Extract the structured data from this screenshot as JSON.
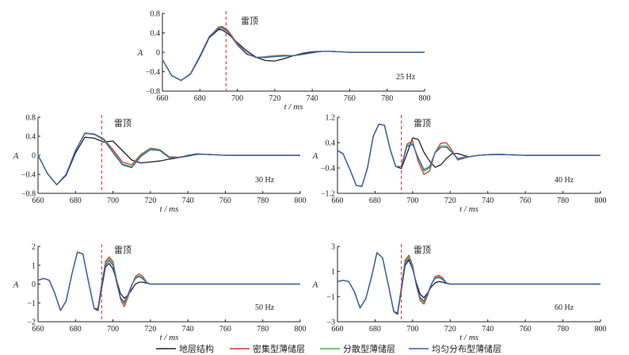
{
  "chart_data": [
    {
      "type": "line",
      "frequency_label": "25 Hz",
      "annotation": "雷顶",
      "marker_x": 694,
      "xlabel": "t / ms",
      "ylabel": "A",
      "xlim": [
        660,
        800
      ],
      "ylim": [
        -0.8,
        0.8
      ],
      "xticks": [
        660,
        680,
        700,
        720,
        740,
        760,
        780,
        800
      ],
      "yticks": [
        -0.8,
        -0.4,
        0,
        0.4,
        0.8
      ],
      "ytick_labels": [
        "−0.8",
        "−0.4",
        "0",
        "0.4",
        "0.8"
      ],
      "x": [
        660,
        665,
        670,
        675,
        680,
        685,
        690,
        692,
        695,
        700,
        705,
        710,
        715,
        720,
        725,
        730,
        735,
        740,
        745,
        750,
        755,
        760,
        770,
        780,
        790,
        800
      ],
      "series": [
        {
          "name": "地层结构",
          "values": [
            -0.15,
            -0.48,
            -0.58,
            -0.45,
            -0.1,
            0.3,
            0.47,
            0.46,
            0.38,
            0.2,
            0.03,
            -0.1,
            -0.17,
            -0.18,
            -0.13,
            -0.07,
            -0.02,
            0.01,
            0.02,
            0.02,
            0.01,
            0,
            0,
            0,
            0,
            0
          ]
        },
        {
          "name": "密集型薄储层",
          "values": [
            -0.15,
            -0.48,
            -0.58,
            -0.44,
            -0.08,
            0.32,
            0.52,
            0.53,
            0.45,
            0.18,
            -0.02,
            -0.11,
            -0.09,
            -0.07,
            -0.06,
            -0.07,
            -0.04,
            -0.01,
            0.02,
            0.02,
            0.01,
            0,
            0,
            0,
            0,
            0
          ]
        },
        {
          "name": "分散型薄储层",
          "values": [
            -0.15,
            -0.48,
            -0.58,
            -0.44,
            -0.08,
            0.32,
            0.5,
            0.51,
            0.43,
            0.16,
            -0.03,
            -0.1,
            -0.1,
            -0.08,
            -0.07,
            -0.07,
            -0.04,
            -0.01,
            0.02,
            0.02,
            0.01,
            0,
            0,
            0,
            0,
            0
          ]
        },
        {
          "name": "均匀分布型薄储层",
          "values": [
            -0.15,
            -0.48,
            -0.58,
            -0.44,
            -0.08,
            0.32,
            0.49,
            0.5,
            0.42,
            0.15,
            -0.04,
            -0.1,
            -0.11,
            -0.09,
            -0.08,
            -0.07,
            -0.04,
            -0.01,
            0.02,
            0.02,
            0.01,
            0,
            0,
            0,
            0,
            0
          ]
        }
      ]
    },
    {
      "type": "line",
      "frequency_label": "30 Hz",
      "annotation": "雷顶",
      "marker_x": 694,
      "xlabel": "t / ms",
      "ylabel": "A",
      "xlim": [
        660,
        800
      ],
      "ylim": [
        -0.8,
        0.8
      ],
      "xticks": [
        660,
        680,
        700,
        720,
        740,
        760,
        780,
        800
      ],
      "yticks": [
        -0.8,
        -0.4,
        0,
        0.4,
        0.8
      ],
      "ytick_labels": [
        "−0.8",
        "−0.4",
        "0",
        "0.4",
        "0.8"
      ],
      "x": [
        660,
        665,
        670,
        675,
        680,
        685,
        690,
        695,
        700,
        705,
        710,
        715,
        720,
        725,
        730,
        735,
        740,
        745,
        750,
        755,
        760,
        770,
        780,
        790,
        800
      ],
      "series": [
        {
          "name": "地层结构",
          "values": [
            0,
            -0.38,
            -0.62,
            -0.42,
            0.05,
            0.38,
            0.36,
            0.28,
            0.3,
            0.1,
            -0.1,
            -0.16,
            -0.14,
            -0.12,
            -0.08,
            -0.05,
            0,
            0.03,
            0.02,
            0.01,
            0,
            0,
            0,
            0,
            0
          ]
        },
        {
          "name": "密集型薄储层",
          "values": [
            0,
            -0.38,
            -0.62,
            -0.4,
            0.1,
            0.47,
            0.45,
            0.35,
            0.12,
            -0.14,
            -0.2,
            0.02,
            0.15,
            0.12,
            -0.03,
            -0.04,
            -0.01,
            0.02,
            0.02,
            0.01,
            0,
            0,
            0,
            0,
            0
          ]
        },
        {
          "name": "分散型薄储层",
          "values": [
            0,
            -0.38,
            -0.62,
            -0.4,
            0.1,
            0.46,
            0.45,
            0.35,
            0.08,
            -0.18,
            -0.24,
            0,
            0.14,
            0.11,
            -0.04,
            -0.05,
            -0.01,
            0.02,
            0.02,
            0.01,
            0,
            0,
            0,
            0,
            0
          ]
        },
        {
          "name": "均匀分布型薄储层",
          "values": [
            0,
            -0.38,
            -0.62,
            -0.4,
            0.1,
            0.46,
            0.44,
            0.33,
            0.06,
            -0.2,
            -0.26,
            -0.02,
            0.12,
            0.1,
            -0.05,
            -0.05,
            -0.02,
            0.02,
            0.02,
            0.01,
            0,
            0,
            0,
            0,
            0
          ]
        }
      ]
    },
    {
      "type": "line",
      "frequency_label": "40 Hz",
      "annotation": "雷顶",
      "marker_x": 694,
      "xlabel": "t / ms",
      "ylabel": "A",
      "xlim": [
        660,
        800
      ],
      "ylim": [
        -1.2,
        1.2
      ],
      "xticks": [
        660,
        680,
        700,
        720,
        740,
        760,
        780,
        800
      ],
      "yticks": [
        -1.2,
        -0.4,
        0.4,
        1.2
      ],
      "ytick_labels": [
        "−1.2",
        "−0.4",
        "0.4",
        "1.2"
      ],
      "x": [
        660,
        663,
        667,
        670,
        673,
        676,
        679,
        682,
        685,
        688,
        691,
        694,
        697,
        700,
        703,
        706,
        709,
        712,
        715,
        718,
        721,
        724,
        727,
        730,
        735,
        740,
        745,
        750,
        760,
        770,
        780,
        790,
        800
      ],
      "series": [
        {
          "name": "地层结构",
          "values": [
            0.15,
            0.05,
            -0.5,
            -0.95,
            -0.98,
            -0.4,
            0.6,
            0.98,
            0.95,
            0.2,
            -0.35,
            -0.42,
            0.05,
            0.55,
            0.5,
            0.1,
            -0.18,
            -0.38,
            -0.3,
            -0.1,
            0.05,
            0.06,
            0,
            -0.05,
            0,
            0.02,
            0.03,
            0.02,
            0,
            0,
            0,
            0,
            0
          ]
        },
        {
          "name": "密集型薄储层",
          "values": [
            0.15,
            0.05,
            -0.5,
            -0.95,
            -0.98,
            -0.4,
            0.6,
            0.98,
            0.95,
            0.2,
            -0.35,
            -0.36,
            0.35,
            0.45,
            -0.2,
            -0.6,
            -0.5,
            0.1,
            0.38,
            0.4,
            0.15,
            -0.15,
            -0.1,
            -0.05,
            0,
            0.02,
            0.03,
            0.02,
            0,
            0,
            0,
            0,
            0
          ]
        },
        {
          "name": "分散型薄储层",
          "values": [
            0.15,
            0.05,
            -0.5,
            -0.95,
            -0.98,
            -0.4,
            0.6,
            0.98,
            0.95,
            0.2,
            -0.35,
            -0.36,
            0.3,
            0.38,
            -0.1,
            -0.5,
            -0.4,
            0.1,
            0.3,
            0.3,
            0.1,
            -0.12,
            -0.08,
            -0.05,
            0,
            0.02,
            0.03,
            0.02,
            0,
            0,
            0,
            0,
            0
          ]
        },
        {
          "name": "均匀分布型薄储层",
          "values": [
            0.15,
            0.05,
            -0.5,
            -0.95,
            -0.98,
            -0.4,
            0.6,
            0.98,
            0.95,
            0.2,
            -0.35,
            -0.36,
            0.28,
            0.34,
            -0.08,
            -0.45,
            -0.36,
            0.08,
            0.25,
            0.26,
            0.08,
            -0.1,
            -0.06,
            -0.04,
            0,
            0.02,
            0.03,
            0.02,
            0,
            0,
            0,
            0,
            0
          ]
        }
      ]
    },
    {
      "type": "line",
      "frequency_label": "50 Hz",
      "annotation": "雷顶",
      "marker_x": 694,
      "xlabel": "t / ms",
      "ylabel": "A",
      "xlim": [
        660,
        800
      ],
      "ylim": [
        -2,
        2
      ],
      "xticks": [
        660,
        680,
        700,
        720,
        740,
        760,
        780,
        800
      ],
      "yticks": [
        -2,
        -1,
        0,
        1,
        2
      ],
      "ytick_labels": [
        "−2",
        "−1",
        "0",
        "1",
        "2"
      ],
      "x": [
        660,
        663,
        666,
        669,
        672,
        675,
        678,
        681,
        684,
        687,
        690,
        692,
        694,
        696,
        698,
        700,
        702,
        704,
        706,
        708,
        710,
        712,
        714,
        716,
        718,
        720,
        724,
        728,
        732,
        740,
        750,
        760,
        770,
        780,
        790,
        800
      ],
      "series": [
        {
          "name": "地层结构",
          "values": [
            0.2,
            0.3,
            0.2,
            -0.5,
            -1.4,
            -0.9,
            0.5,
            1.7,
            1.6,
            0.1,
            -1.3,
            -1.4,
            -0.2,
            0.9,
            1.1,
            0.8,
            0.2,
            -0.5,
            -0.75,
            -0.6,
            -0.3,
            0,
            0.1,
            0.1,
            0.05,
            0,
            0,
            0,
            0,
            0,
            0,
            0,
            0,
            0,
            0,
            0
          ]
        },
        {
          "name": "密集型薄储层",
          "values": [
            0.2,
            0.3,
            0.2,
            -0.5,
            -1.4,
            -0.9,
            0.5,
            1.7,
            1.6,
            0.1,
            -1.3,
            -1.3,
            0,
            1.2,
            1.45,
            1.2,
            0.2,
            -0.8,
            -1.2,
            -0.7,
            -0.1,
            0.4,
            0.55,
            0.4,
            0.1,
            0,
            0,
            0,
            0,
            0,
            0,
            0,
            0,
            0,
            0,
            0
          ]
        },
        {
          "name": "分散型薄储层",
          "values": [
            0.2,
            0.3,
            0.2,
            -0.5,
            -1.4,
            -0.9,
            0.5,
            1.7,
            1.6,
            0.1,
            -1.3,
            -1.3,
            0,
            1.1,
            1.35,
            1.1,
            0.1,
            -0.75,
            -1.05,
            -0.6,
            -0.05,
            0.35,
            0.45,
            0.32,
            0.08,
            0,
            0,
            0,
            0,
            0,
            0,
            0,
            0,
            0,
            0,
            0
          ]
        },
        {
          "name": "均匀分布型薄储层",
          "values": [
            0.2,
            0.3,
            0.2,
            -0.5,
            -1.4,
            -0.9,
            0.5,
            1.7,
            1.6,
            0.1,
            -1.3,
            -1.3,
            0,
            1.0,
            1.25,
            1.0,
            0.05,
            -0.7,
            -0.95,
            -0.55,
            -0.05,
            0.3,
            0.4,
            0.28,
            0.06,
            0,
            0,
            0,
            0,
            0,
            0,
            0,
            0,
            0,
            0,
            0
          ]
        }
      ]
    },
    {
      "type": "line",
      "frequency_label": "60 Hz",
      "annotation": "雷顶",
      "marker_x": 694,
      "xlabel": "t / ms",
      "ylabel": "A",
      "xlim": [
        660,
        800
      ],
      "ylim": [
        -3,
        3
      ],
      "xticks": [
        660,
        680,
        700,
        720,
        740,
        760,
        780,
        800
      ],
      "yticks": [
        -3,
        -1,
        1,
        3
      ],
      "ytick_labels": [
        "−3",
        "−1",
        "1",
        "3"
      ],
      "x": [
        660,
        663,
        666,
        669,
        672,
        675,
        678,
        681,
        684,
        687,
        690,
        692,
        694,
        696,
        698,
        700,
        702,
        704,
        706,
        708,
        710,
        712,
        714,
        716,
        718,
        720,
        724,
        728,
        732,
        740,
        750,
        760,
        770,
        780,
        790,
        800
      ],
      "series": [
        {
          "name": "地层结构",
          "values": [
            0.2,
            0.3,
            0.2,
            -0.6,
            -1.9,
            -1.2,
            0.5,
            2.5,
            2.1,
            0,
            -2.2,
            -2.4,
            -0.5,
            1.5,
            1.9,
            1.2,
            0.1,
            -0.8,
            -1.1,
            -0.7,
            -0.2,
            0.1,
            0.2,
            0.15,
            0.05,
            0,
            0,
            0,
            0,
            0,
            0,
            0,
            0,
            0,
            0,
            0
          ]
        },
        {
          "name": "密集型薄储层",
          "values": [
            0.2,
            0.3,
            0.2,
            -0.6,
            -1.9,
            -1.2,
            0.5,
            2.5,
            2.1,
            0,
            -2.2,
            -2.3,
            -0.3,
            1.9,
            2.3,
            1.5,
            -0.1,
            -1.3,
            -1.6,
            -0.9,
            0,
            0.6,
            0.7,
            0.5,
            0.1,
            0,
            0,
            0,
            0,
            0,
            0,
            0,
            0,
            0,
            0,
            0
          ]
        },
        {
          "name": "分散型薄储层",
          "values": [
            0.2,
            0.3,
            0.2,
            -0.6,
            -1.9,
            -1.2,
            0.5,
            2.5,
            2.1,
            0,
            -2.2,
            -2.3,
            -0.3,
            1.8,
            2.15,
            1.4,
            -0.1,
            -1.15,
            -1.45,
            -0.8,
            0,
            0.5,
            0.6,
            0.42,
            0.08,
            0,
            0,
            0,
            0,
            0,
            0,
            0,
            0,
            0,
            0,
            0
          ]
        },
        {
          "name": "均匀分布型薄储层",
          "values": [
            0.2,
            0.3,
            0.2,
            -0.6,
            -1.9,
            -1.2,
            0.5,
            2.5,
            2.1,
            0,
            -2.2,
            -2.3,
            -0.3,
            1.7,
            2.0,
            1.3,
            -0.1,
            -1.05,
            -1.35,
            -0.75,
            0,
            0.45,
            0.52,
            0.36,
            0.06,
            0,
            0,
            0,
            0,
            0,
            0,
            0,
            0,
            0,
            0,
            0
          ]
        }
      ]
    }
  ],
  "legend": [
    {
      "label": "地层结构",
      "color": "#222222"
    },
    {
      "label": "密集型薄储层",
      "color": "#e8312a"
    },
    {
      "label": "分散型薄储层",
      "color": "#3cb54a"
    },
    {
      "label": "均匀分布型薄储层",
      "color": "#3a5fb8"
    }
  ],
  "marker_color": "#e03a3a"
}
